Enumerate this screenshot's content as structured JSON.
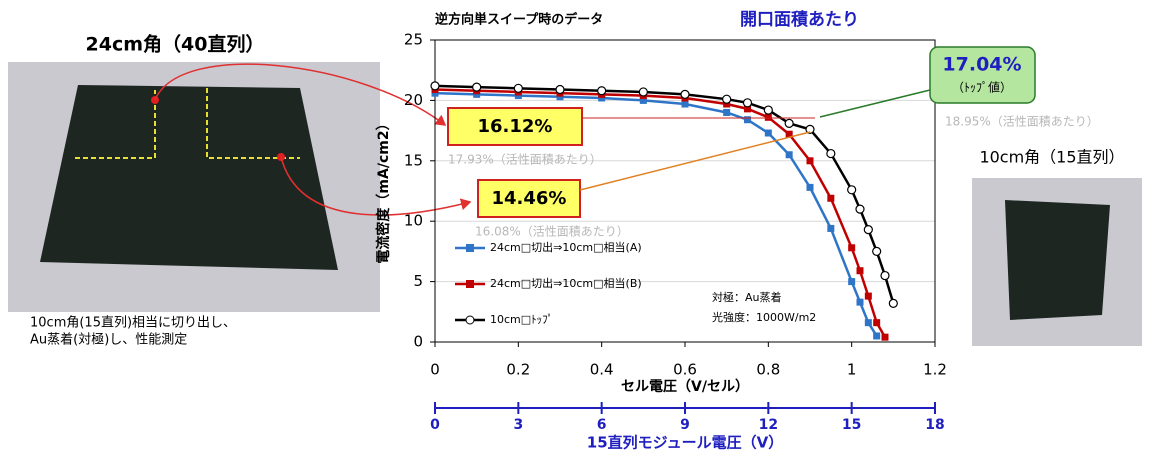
{
  "chart_data": {
    "type": "line",
    "title": "逆方向単スイープ時のデータ",
    "subtitle": "開口面積あたり",
    "xlabel": "セル電圧（V/セル）",
    "ylabel": "電流密度（mA/cm2）",
    "x2label": "15直列モジュール電圧（V）",
    "x": [
      0,
      0.1,
      0.2,
      0.3,
      0.4,
      0.5,
      0.6,
      0.7,
      0.75,
      0.8,
      0.85,
      0.9,
      0.95,
      1.0,
      1.02,
      1.04,
      1.06,
      1.08,
      1.1
    ],
    "series": [
      {
        "name": "24cm□切出⇒10cm□相当(A)",
        "color": "#2e75c8",
        "marker": "square",
        "values": [
          20.6,
          20.5,
          20.4,
          20.3,
          20.2,
          20.0,
          19.7,
          19.0,
          18.4,
          17.3,
          15.5,
          12.8,
          9.4,
          5.0,
          3.3,
          1.6,
          0.5,
          null,
          null
        ]
      },
      {
        "name": "24cm□切出⇒10cm□相当(B)",
        "color": "#c00000",
        "marker": "square",
        "values": [
          20.9,
          20.8,
          20.7,
          20.6,
          20.5,
          20.4,
          20.2,
          19.7,
          19.3,
          18.6,
          17.2,
          15.0,
          11.9,
          7.8,
          5.9,
          3.8,
          1.6,
          0.4,
          null
        ]
      },
      {
        "name": "10cm□ﾄｯﾌﾟ",
        "color": "#000000",
        "marker": "circle",
        "values": [
          21.2,
          21.1,
          21.0,
          20.9,
          20.8,
          20.7,
          20.5,
          20.1,
          19.8,
          19.2,
          18.1,
          17.6,
          15.6,
          12.6,
          11.0,
          9.3,
          7.5,
          5.5,
          3.2
        ]
      }
    ],
    "xlim": [
      0,
      1.2
    ],
    "xticks": [
      0,
      0.2,
      0.4,
      0.6,
      0.8,
      1,
      1.2
    ],
    "ylim": [
      0,
      25
    ],
    "yticks": [
      0,
      5,
      10,
      15,
      20,
      25
    ],
    "x2lim": [
      0,
      18
    ],
    "x2ticks": [
      0,
      3,
      6,
      9,
      12,
      15,
      18
    ],
    "x2color": "#1f1fc0",
    "grid": true,
    "legend": "lower left",
    "annotations": [
      "16.12%",
      "14.46%",
      "17.04%",
      "（ﾄｯﾌﾟ値）",
      "18.95%（活性面積あたり）",
      "17.93%（活性面積あたり）",
      "16.08%（活性面積あたり）",
      "対極：Au蒸着",
      "光強度：1000W/m2"
    ]
  },
  "photos": {
    "left_title": "24cm角（40直列）",
    "left_caption": [
      "10cm角(15直列)相当に切り出し、",
      "Au蒸着(対極)し、性能測定"
    ],
    "right_title": "10cm角（15直列）"
  }
}
